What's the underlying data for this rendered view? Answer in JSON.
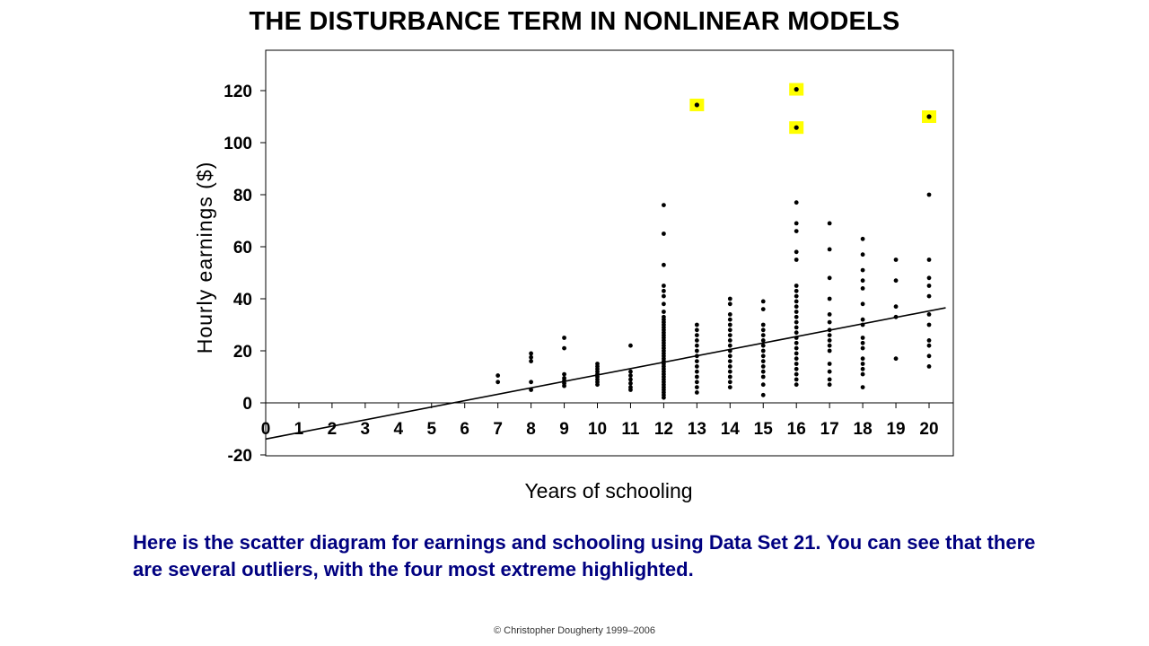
{
  "title": "THE DISTURBANCE TERM IN NONLINEAR MODELS",
  "caption": "Here is the scatter diagram for earnings and schooling using Data Set 21.  You can see that there are several outliers, with the four most extreme highlighted.",
  "copyright": "© Christopher Dougherty 1999–2006",
  "colors": {
    "highlight": "#ffff00",
    "point": "#000000",
    "caption": "#000080"
  },
  "chart_data": {
    "type": "scatter",
    "xlabel": "Years of schooling",
    "ylabel": "Hourly earnings ($)",
    "xlim": [
      0,
      20
    ],
    "ylim": [
      -20,
      133
    ],
    "x_ticks": [
      0,
      1,
      2,
      3,
      4,
      5,
      6,
      7,
      8,
      9,
      10,
      11,
      12,
      13,
      14,
      15,
      16,
      17,
      18,
      19,
      20
    ],
    "y_ticks": [
      -20,
      0,
      20,
      40,
      60,
      80,
      100,
      120
    ],
    "grid": false,
    "regression_line": {
      "intercept": -13.9,
      "slope": 2.46,
      "x_range": [
        0,
        20.5
      ]
    },
    "series": [
      {
        "points": [
          [
            7,
            8
          ],
          [
            7,
            10.5
          ],
          [
            8,
            5
          ],
          [
            8,
            8
          ],
          [
            8,
            16
          ],
          [
            8,
            17.5
          ],
          [
            8,
            19
          ],
          [
            9,
            6.5
          ],
          [
            9,
            7.5
          ],
          [
            9,
            8.5
          ],
          [
            9,
            9.5
          ],
          [
            9,
            11
          ],
          [
            9,
            21
          ],
          [
            9,
            25
          ],
          [
            10,
            7
          ],
          [
            10,
            8
          ],
          [
            10,
            9
          ],
          [
            10,
            10
          ],
          [
            10,
            11
          ],
          [
            10,
            12
          ],
          [
            10,
            13
          ],
          [
            10,
            14
          ],
          [
            10,
            15
          ],
          [
            11,
            5
          ],
          [
            11,
            6
          ],
          [
            11,
            7.5
          ],
          [
            11,
            9
          ],
          [
            11,
            10.5
          ],
          [
            11,
            12
          ],
          [
            11,
            22
          ],
          [
            12,
            2
          ],
          [
            12,
            3
          ],
          [
            12,
            4
          ],
          [
            12,
            5
          ],
          [
            12,
            6
          ],
          [
            12,
            7
          ],
          [
            12,
            8
          ],
          [
            12,
            9
          ],
          [
            12,
            10
          ],
          [
            12,
            11
          ],
          [
            12,
            12
          ],
          [
            12,
            13
          ],
          [
            12,
            14
          ],
          [
            12,
            15
          ],
          [
            12,
            16
          ],
          [
            12,
            17
          ],
          [
            12,
            18
          ],
          [
            12,
            19
          ],
          [
            12,
            20
          ],
          [
            12,
            21
          ],
          [
            12,
            22
          ],
          [
            12,
            23
          ],
          [
            12,
            24
          ],
          [
            12,
            25
          ],
          [
            12,
            26
          ],
          [
            12,
            27
          ],
          [
            12,
            28
          ],
          [
            12,
            29
          ],
          [
            12,
            30
          ],
          [
            12,
            31
          ],
          [
            12,
            32
          ],
          [
            12,
            33
          ],
          [
            12,
            35
          ],
          [
            12,
            38
          ],
          [
            12,
            41
          ],
          [
            12,
            43
          ],
          [
            12,
            45
          ],
          [
            12,
            53
          ],
          [
            12,
            65
          ],
          [
            12,
            76
          ],
          [
            13,
            4
          ],
          [
            13,
            6
          ],
          [
            13,
            8
          ],
          [
            13,
            10
          ],
          [
            13,
            12
          ],
          [
            13,
            14
          ],
          [
            13,
            16
          ],
          [
            13,
            18
          ],
          [
            13,
            20
          ],
          [
            13,
            22
          ],
          [
            13,
            24
          ],
          [
            13,
            26
          ],
          [
            13,
            28
          ],
          [
            13,
            30
          ],
          [
            14,
            6
          ],
          [
            14,
            8
          ],
          [
            14,
            10
          ],
          [
            14,
            12
          ],
          [
            14,
            14
          ],
          [
            14,
            16
          ],
          [
            14,
            18
          ],
          [
            14,
            20
          ],
          [
            14,
            22
          ],
          [
            14,
            24
          ],
          [
            14,
            26
          ],
          [
            14,
            28
          ],
          [
            14,
            30
          ],
          [
            14,
            32
          ],
          [
            14,
            34
          ],
          [
            14,
            38
          ],
          [
            14,
            40
          ],
          [
            15,
            3
          ],
          [
            15,
            7
          ],
          [
            15,
            10
          ],
          [
            15,
            12
          ],
          [
            15,
            14
          ],
          [
            15,
            16
          ],
          [
            15,
            18
          ],
          [
            15,
            20
          ],
          [
            15,
            22
          ],
          [
            15,
            24
          ],
          [
            15,
            26
          ],
          [
            15,
            28
          ],
          [
            15,
            30
          ],
          [
            15,
            36
          ],
          [
            15,
            39
          ],
          [
            16,
            7
          ],
          [
            16,
            9
          ],
          [
            16,
            11
          ],
          [
            16,
            13
          ],
          [
            16,
            15
          ],
          [
            16,
            17
          ],
          [
            16,
            19
          ],
          [
            16,
            21
          ],
          [
            16,
            23
          ],
          [
            16,
            25
          ],
          [
            16,
            27
          ],
          [
            16,
            29
          ],
          [
            16,
            31
          ],
          [
            16,
            33
          ],
          [
            16,
            35
          ],
          [
            16,
            37
          ],
          [
            16,
            39
          ],
          [
            16,
            41
          ],
          [
            16,
            43
          ],
          [
            16,
            45
          ],
          [
            16,
            55
          ],
          [
            16,
            58
          ],
          [
            16,
            66
          ],
          [
            16,
            69
          ],
          [
            16,
            77
          ],
          [
            17,
            7
          ],
          [
            17,
            9
          ],
          [
            17,
            12
          ],
          [
            17,
            15
          ],
          [
            17,
            20
          ],
          [
            17,
            22
          ],
          [
            17,
            24
          ],
          [
            17,
            26
          ],
          [
            17,
            28
          ],
          [
            17,
            31
          ],
          [
            17,
            34
          ],
          [
            17,
            40
          ],
          [
            17,
            48
          ],
          [
            17,
            59
          ],
          [
            17,
            69
          ],
          [
            18,
            6
          ],
          [
            18,
            11
          ],
          [
            18,
            13
          ],
          [
            18,
            15
          ],
          [
            18,
            17
          ],
          [
            18,
            21
          ],
          [
            18,
            23
          ],
          [
            18,
            25
          ],
          [
            18,
            30
          ],
          [
            18,
            32
          ],
          [
            18,
            38
          ],
          [
            18,
            44
          ],
          [
            18,
            47
          ],
          [
            18,
            51
          ],
          [
            18,
            57
          ],
          [
            18,
            63
          ],
          [
            19,
            17
          ],
          [
            19,
            33
          ],
          [
            19,
            37
          ],
          [
            19,
            47
          ],
          [
            19,
            55
          ],
          [
            20,
            14
          ],
          [
            20,
            18
          ],
          [
            20,
            22
          ],
          [
            20,
            24
          ],
          [
            20,
            30
          ],
          [
            20,
            34
          ],
          [
            20,
            41
          ],
          [
            20,
            45
          ],
          [
            20,
            48
          ],
          [
            20,
            55
          ],
          [
            20,
            80
          ]
        ]
      },
      {
        "highlighted": true,
        "points": [
          [
            13,
            114.5
          ],
          [
            16,
            120.5
          ],
          [
            16,
            105.8
          ],
          [
            20,
            110
          ]
        ]
      }
    ]
  }
}
